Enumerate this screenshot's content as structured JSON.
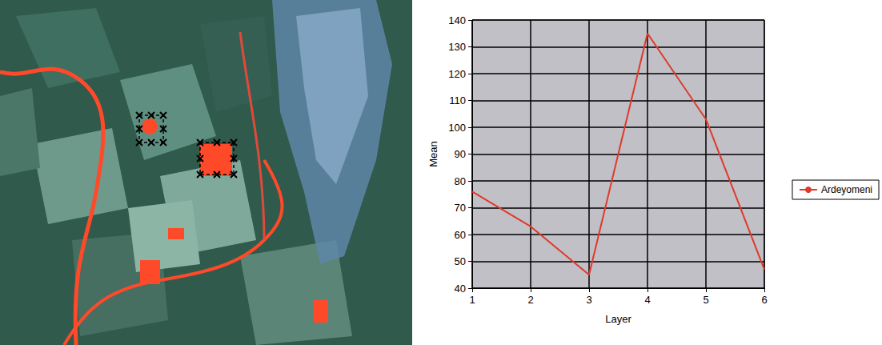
{
  "chart_data": {
    "type": "line",
    "x": [
      1,
      2,
      3,
      4,
      5,
      6
    ],
    "series": [
      {
        "name": "Ardeyomeni",
        "color": "#e0392b",
        "values": [
          76,
          63,
          45,
          135,
          103,
          47
        ]
      }
    ],
    "xlabel": "Layer",
    "ylabel": "Mean",
    "xlim": [
      1,
      6
    ],
    "xticks": [
      1,
      2,
      3,
      4,
      5,
      6
    ],
    "ylim": [
      40,
      140
    ],
    "yticks": [
      40,
      50,
      60,
      70,
      80,
      90,
      100,
      110,
      120,
      130,
      140
    ],
    "grid": true,
    "legend": "right"
  }
}
